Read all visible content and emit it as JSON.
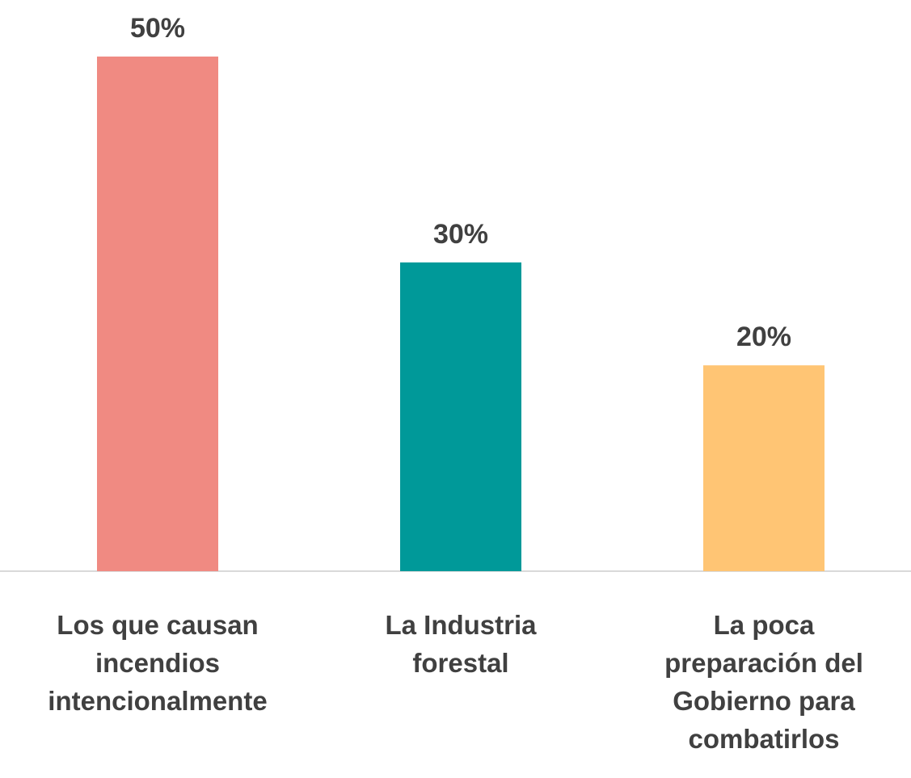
{
  "chart_data": {
    "type": "bar",
    "categories": [
      "Los que causan\nincendios\nintencionalmente",
      "La Industria\nforestal",
      "La poca\npreparación del\nGobierno para\ncombatirlos"
    ],
    "values": [
      50,
      30,
      20
    ],
    "value_labels": [
      "50%",
      "30%",
      "20%"
    ],
    "colors": [
      "#f08a82",
      "#009999",
      "#ffc574"
    ]
  }
}
